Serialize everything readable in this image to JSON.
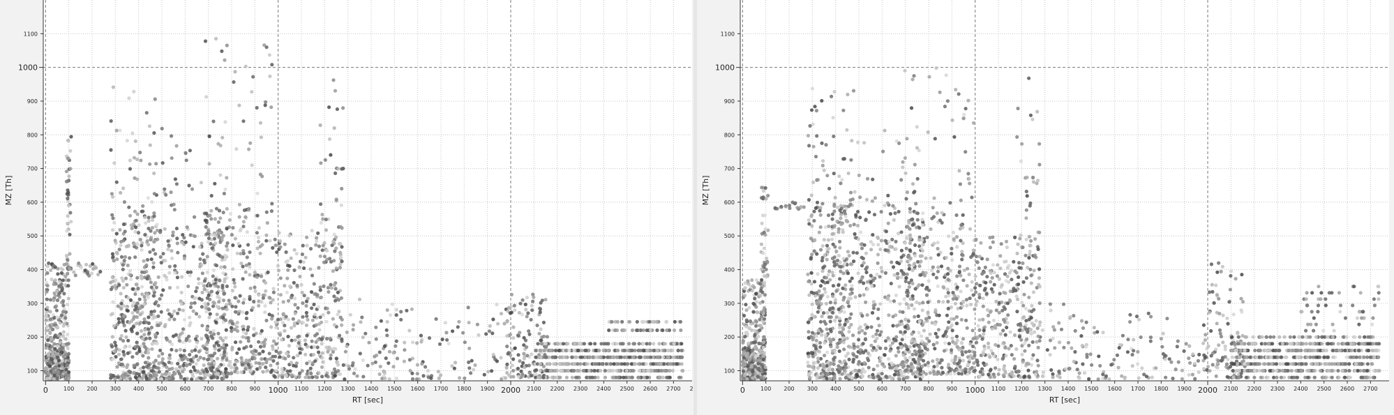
{
  "chart_data": [
    {
      "type": "scatter",
      "xlabel": "RT [sec]",
      "ylabel": "MZ [Th]",
      "xlim": [
        -10,
        2780
      ],
      "ylim": [
        70,
        1200
      ],
      "x_ticks": [
        0,
        100,
        200,
        300,
        400,
        500,
        600,
        700,
        800,
        900,
        1000,
        1100,
        1200,
        1300,
        1400,
        1500,
        1600,
        1700,
        1800,
        1900,
        2000,
        2100,
        2200,
        2300,
        2400,
        2500,
        2600,
        2700
      ],
      "x_tick_labels": [
        "0",
        "100",
        "200",
        "300",
        "400",
        "500",
        "600",
        "700",
        "800",
        "900",
        "1000",
        "1100",
        "1200",
        "1300",
        "1400",
        "1500",
        "1600",
        "1700",
        "1800",
        "1900",
        "2000",
        "2100",
        "2200",
        "2300",
        "2400",
        "2500",
        "2600",
        "2700"
      ],
      "x_major_ticks": [
        0,
        1000,
        2000
      ],
      "x_edge_label": "2",
      "y_ticks": [
        100,
        200,
        300,
        400,
        500,
        600,
        700,
        800,
        900,
        1000,
        1100
      ],
      "y_tick_labels": [
        "100",
        "200",
        "300",
        "400",
        "500",
        "600",
        "700",
        "800",
        "900",
        "1000",
        "1100"
      ],
      "y_major_ticks": [
        1000
      ],
      "grid": true,
      "seed": 11,
      "clusters": [
        {
          "x": [
            0,
            100
          ],
          "y": [
            75,
            420
          ],
          "n": 260
        },
        {
          "x": [
            0,
            100
          ],
          "y": [
            75,
            180
          ],
          "n": 200
        },
        {
          "x": [
            90,
            110
          ],
          "y": [
            400,
            800
          ],
          "n": 45
        },
        {
          "x": [
            120,
            240
          ],
          "y": [
            380,
            420
          ],
          "n": 22
        },
        {
          "x": [
            280,
            480
          ],
          "y": [
            75,
            560
          ],
          "n": 430
        },
        {
          "x": [
            280,
            480
          ],
          "y": [
            560,
            950
          ],
          "n": 45
        },
        {
          "x": [
            480,
            780
          ],
          "y": [
            75,
            520
          ],
          "n": 360
        },
        {
          "x": [
            480,
            780
          ],
          "y": [
            520,
            900
          ],
          "n": 45
        },
        {
          "x": [
            680,
            980
          ],
          "y": [
            90,
            560
          ],
          "n": 380
        },
        {
          "x": [
            680,
            980
          ],
          "y": [
            560,
            1090
          ],
          "n": 50
        },
        {
          "x": [
            980,
            1280
          ],
          "y": [
            80,
            520
          ],
          "n": 330
        },
        {
          "x": [
            1180,
            1280
          ],
          "y": [
            400,
            980
          ],
          "n": 45
        },
        {
          "x": [
            1280,
            1520
          ],
          "y": [
            75,
            320
          ],
          "n": 65
        },
        {
          "x": [
            1520,
            2000
          ],
          "y": [
            75,
            300
          ],
          "n": 90
        },
        {
          "x": [
            1980,
            2160
          ],
          "y": [
            80,
            330
          ],
          "n": 120
        },
        {
          "x": [
            2100,
            2740
          ],
          "y": [
            80,
            180
          ],
          "n": 620,
          "band": true
        },
        {
          "x": [
            2400,
            2740
          ],
          "y": [
            220,
            245
          ],
          "n": 60,
          "band": true
        }
      ]
    },
    {
      "type": "scatter",
      "xlabel": "RT [sec]",
      "ylabel": "MZ [Th]",
      "xlim": [
        -10,
        2780
      ],
      "ylim": [
        70,
        1200
      ],
      "x_ticks": [
        0,
        100,
        200,
        300,
        400,
        500,
        600,
        700,
        800,
        900,
        1000,
        1100,
        1200,
        1300,
        1400,
        1500,
        1600,
        1700,
        1800,
        1900,
        2000,
        2100,
        2200,
        2300,
        2400,
        2500,
        2600,
        2700
      ],
      "x_tick_labels": [
        "0",
        "100",
        "200",
        "300",
        "400",
        "500",
        "600",
        "700",
        "800",
        "900",
        "1000",
        "1100",
        "1200",
        "1300",
        "1400",
        "1500",
        "1600",
        "1700",
        "1800",
        "1900",
        "2000",
        "2100",
        "2200",
        "2300",
        "2400",
        "2500",
        "2600",
        "2700"
      ],
      "x_major_ticks": [
        0,
        1000,
        2000
      ],
      "x_edge_label": "",
      "y_ticks": [
        100,
        200,
        300,
        400,
        500,
        600,
        700,
        800,
        900,
        1000,
        1100
      ],
      "y_tick_labels": [
        "100",
        "200",
        "300",
        "400",
        "500",
        "600",
        "700",
        "800",
        "900",
        "1000",
        "1100"
      ],
      "y_major_ticks": [
        1000
      ],
      "grid": true,
      "seed": 29,
      "clusters": [
        {
          "x": [
            0,
            100
          ],
          "y": [
            75,
            380
          ],
          "n": 240
        },
        {
          "x": [
            0,
            100
          ],
          "y": [
            75,
            170
          ],
          "n": 180
        },
        {
          "x": [
            80,
            110
          ],
          "y": [
            380,
            650
          ],
          "n": 35
        },
        {
          "x": [
            120,
            290
          ],
          "y": [
            580,
            600
          ],
          "n": 20
        },
        {
          "x": [
            280,
            480
          ],
          "y": [
            75,
            600
          ],
          "n": 440
        },
        {
          "x": [
            280,
            480
          ],
          "y": [
            600,
            950
          ],
          "n": 45
        },
        {
          "x": [
            480,
            780
          ],
          "y": [
            75,
            560
          ],
          "n": 380
        },
        {
          "x": [
            480,
            780
          ],
          "y": [
            560,
            820
          ],
          "n": 40
        },
        {
          "x": [
            680,
            1000
          ],
          "y": [
            90,
            560
          ],
          "n": 400
        },
        {
          "x": [
            680,
            1000
          ],
          "y": [
            560,
            1010
          ],
          "n": 50
        },
        {
          "x": [
            1000,
            1280
          ],
          "y": [
            80,
            500
          ],
          "n": 330
        },
        {
          "x": [
            1180,
            1280
          ],
          "y": [
            400,
            980
          ],
          "n": 40
        },
        {
          "x": [
            1280,
            1520
          ],
          "y": [
            75,
            300
          ],
          "n": 60
        },
        {
          "x": [
            1520,
            2000
          ],
          "y": [
            75,
            300
          ],
          "n": 85
        },
        {
          "x": [
            1980,
            2160
          ],
          "y": [
            80,
            420
          ],
          "n": 110
        },
        {
          "x": [
            2100,
            2740
          ],
          "y": [
            80,
            200
          ],
          "n": 650,
          "band": true
        },
        {
          "x": [
            2400,
            2740
          ],
          "y": [
            200,
            350
          ],
          "n": 60,
          "band": true
        }
      ]
    }
  ]
}
